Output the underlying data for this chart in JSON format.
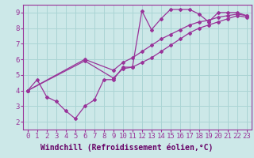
{
  "background_color": "#cce8e8",
  "line_color": "#993399",
  "xlabel": "Windchill (Refroidissement éolien,°C)",
  "xlabel_color": "#660066",
  "ylabel_ticks": [
    2,
    3,
    4,
    5,
    6,
    7,
    8,
    9
  ],
  "xtick_labels": [
    "0",
    "1",
    "2",
    "3",
    "4",
    "5",
    "6",
    "7",
    "8",
    "9",
    "10",
    "11",
    "12",
    "13",
    "14",
    "15",
    "16",
    "17",
    "18",
    "19",
    "20",
    "21",
    "22",
    "23"
  ],
  "xlim": [
    -0.5,
    23.5
  ],
  "ylim": [
    1.5,
    9.5
  ],
  "grid_color": "#aad4d4",
  "separator_color": "#993399",
  "lines": [
    {
      "x": [
        0,
        1,
        2,
        3,
        4,
        5,
        6,
        7,
        8,
        9,
        10,
        11,
        12,
        13,
        14,
        15,
        16,
        17,
        18,
        19,
        20,
        21,
        22,
        23
      ],
      "y": [
        4.0,
        4.7,
        3.6,
        3.3,
        2.7,
        2.2,
        3.0,
        3.4,
        4.7,
        4.7,
        5.5,
        5.5,
        9.1,
        7.9,
        8.6,
        9.2,
        9.2,
        9.2,
        8.9,
        8.4,
        9.0,
        9.0,
        9.0,
        8.8
      ]
    },
    {
      "x": [
        0,
        6,
        9,
        10,
        11,
        12,
        13,
        14,
        15,
        16,
        17,
        18,
        19,
        20,
        21,
        22,
        23
      ],
      "y": [
        4.0,
        6.0,
        5.3,
        5.8,
        6.1,
        6.5,
        6.9,
        7.3,
        7.6,
        7.9,
        8.2,
        8.4,
        8.5,
        8.7,
        8.8,
        8.9,
        8.8
      ]
    },
    {
      "x": [
        0,
        6,
        9,
        10,
        11,
        12,
        13,
        14,
        15,
        16,
        17,
        18,
        19,
        20,
        21,
        22,
        23
      ],
      "y": [
        4.0,
        5.9,
        4.8,
        5.4,
        5.5,
        5.8,
        6.1,
        6.5,
        6.9,
        7.3,
        7.7,
        8.0,
        8.2,
        8.4,
        8.6,
        8.8,
        8.7
      ]
    }
  ],
  "tick_fontsize": 6.5,
  "xlabel_fontsize": 7,
  "font_family": "monospace"
}
